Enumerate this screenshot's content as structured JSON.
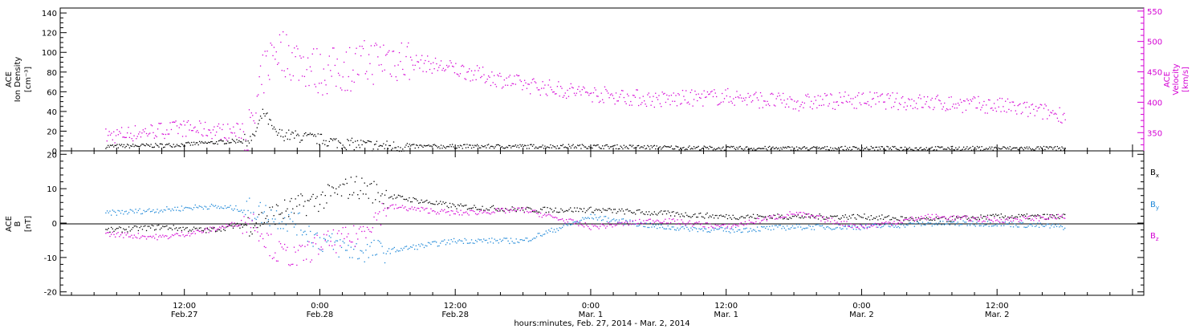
{
  "footer_label": "hours:minutes, Feb. 27, 2014 - Mar. 2, 2014",
  "x_ticks": [
    {
      "time": "12:00",
      "date": "Feb.27"
    },
    {
      "time": "0:00",
      "date": "Feb.28"
    },
    {
      "time": "12:00",
      "date": "Feb.28"
    },
    {
      "time": "0:00",
      "date": "Mar. 1"
    },
    {
      "time": "12:00",
      "date": "Mar. 1"
    },
    {
      "time": "0:00",
      "date": "Mar. 2"
    },
    {
      "time": "12:00",
      "date": "Mar. 2"
    }
  ],
  "colors": {
    "density": "#000000",
    "velocity": "#d400d4",
    "bx": "#000000",
    "by": "#1e88d8",
    "bz": "#d400d4"
  },
  "chart_data": [
    {
      "type": "scatter",
      "ylabel_left": [
        "ACE",
        "Ion Density",
        "[cm⁻³]"
      ],
      "ylabel_right": [
        "ACE",
        "Velocity",
        "[km/s]"
      ],
      "ylim_left": [
        0,
        145
      ],
      "ylim_right": [
        320,
        555
      ],
      "yticks_left": [
        "0",
        "20",
        "40",
        "60",
        "80",
        "100",
        "120",
        "140"
      ],
      "yticks_right": [
        "350",
        "400",
        "450",
        "500",
        "550"
      ],
      "x_hours_since_feb27_0000": [
        5,
        10,
        12,
        16,
        18,
        19,
        20,
        22,
        24,
        26,
        30,
        36,
        42,
        48,
        54,
        60,
        66,
        72,
        78,
        84,
        90
      ],
      "series": [
        {
          "axis": "left",
          "values": [
            5,
            6,
            7,
            10,
            12,
            40,
            18,
            15,
            12,
            8,
            5,
            5,
            5,
            5,
            4,
            3,
            3,
            3,
            3,
            3,
            3
          ]
        },
        {
          "axis": "right",
          "values": [
            345,
            355,
            358,
            352,
            355,
            450,
            490,
            470,
            450,
            455,
            475,
            455,
            430,
            415,
            405,
            410,
            400,
            405,
            400,
            395,
            380
          ]
        }
      ]
    },
    {
      "type": "scatter",
      "ylabel_left": [
        "ACE",
        "B",
        "[nT]"
      ],
      "ylim": [
        -21,
        21
      ],
      "yticks_left": [
        "-20",
        "-10",
        "0",
        "10",
        "20"
      ],
      "x_hours_since_feb27_0000": [
        5,
        10,
        14,
        18,
        20,
        22,
        24,
        27,
        30,
        36,
        42,
        48,
        54,
        60,
        66,
        72,
        78,
        84,
        90
      ],
      "series": [
        {
          "name": "Bx",
          "label_main": "B",
          "label_sub": "x",
          "values": [
            -2,
            -1,
            -2,
            0,
            3,
            5,
            7,
            11,
            8,
            5,
            4,
            4,
            3,
            2,
            2,
            2,
            1,
            2,
            2
          ]
        },
        {
          "name": "By",
          "label_main": "B",
          "label_sub": "y",
          "values": [
            3,
            4,
            5,
            4,
            2,
            0,
            -5,
            -8,
            -8,
            -5,
            -5,
            2,
            -1,
            -2,
            -1,
            -1,
            0,
            0,
            -1
          ]
        },
        {
          "name": "Bz",
          "label_main": "B",
          "label_sub": "z",
          "values": [
            -3,
            -4,
            -2,
            1,
            -8,
            -10,
            -6,
            -4,
            5,
            3,
            4,
            -1,
            1,
            -1,
            3,
            -1,
            2,
            1,
            2
          ]
        }
      ]
    }
  ]
}
